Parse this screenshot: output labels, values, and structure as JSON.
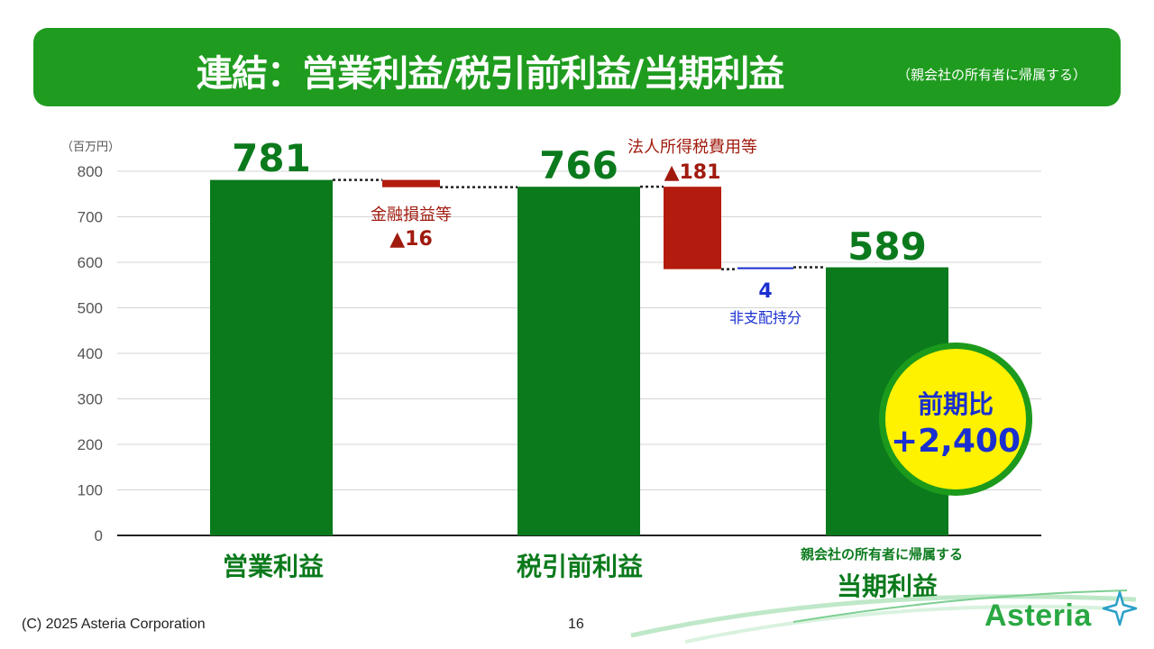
{
  "title": {
    "main": "連結：営業利益/税引前利益/当期利益",
    "sub": "（親会社の所有者に帰属する）"
  },
  "chart_data": {
    "type": "bar",
    "unit_label": "（百万円）",
    "ylim": [
      0,
      800
    ],
    "yticks": [
      "0",
      "100",
      "200",
      "300",
      "400",
      "500",
      "600",
      "700",
      "800"
    ],
    "grid": true,
    "bars": [
      {
        "role": "total",
        "value": 781,
        "value_label": "781",
        "category": "営業利益"
      },
      {
        "role": "decrease",
        "from": 781,
        "to": 765,
        "label": "金融損益等",
        "value_label": "▲16"
      },
      {
        "role": "total",
        "value": 766,
        "value_label": "766",
        "category": "税引前利益"
      },
      {
        "role": "decrease",
        "from": 766,
        "to": 585,
        "label": "法人所得税費用等",
        "value_label": "▲181"
      },
      {
        "role": "increase",
        "from": 585,
        "to": 589,
        "label": "非支配持分",
        "value_label": "4"
      },
      {
        "role": "total",
        "value": 589,
        "value_label": "589",
        "category": "当期利益",
        "category_sub": "親会社の所有者に帰属する"
      }
    ]
  },
  "badge": {
    "line1": "前期比",
    "line2": "+2,400"
  },
  "colors": {
    "total": "#0b7a1c",
    "decrease": "#b31b0e",
    "increase": "#1a2fd0",
    "accent": "#1f9c1f"
  },
  "footer": {
    "copyright": "(C) 2025 Asteria Corporation",
    "page": "16",
    "logo": "Asteria"
  }
}
